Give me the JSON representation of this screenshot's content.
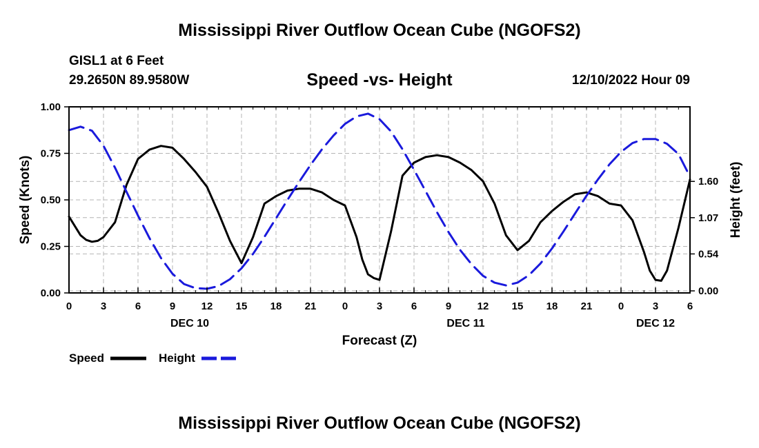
{
  "header": {
    "title": "Mississippi River Outflow Ocean Cube (NGOFS2)",
    "station_name": "GISL1 at 6 Feet",
    "station_coords": "29.2650N  89.9580W",
    "datetime": "12/10/2022 Hour 09"
  },
  "footer": {
    "title": "Mississippi River Outflow Ocean Cube (NGOFS2)"
  },
  "colors": {
    "speed": "#000000",
    "height": "#1a1adc",
    "grid": "#b4b4b4"
  },
  "chart_data": {
    "type": "line",
    "title": "Speed -vs- Height",
    "xlabel": "Forecast (Z)",
    "ylabel": "Speed (Knots)",
    "y2label": "Height (feet)",
    "xlim": [
      0,
      54
    ],
    "ylim": [
      0,
      1
    ],
    "y2lim": [
      -0.03,
      2.69
    ],
    "x_ticks": [
      0,
      3,
      6,
      9,
      12,
      15,
      18,
      21,
      24,
      27,
      30,
      33,
      36,
      39,
      42,
      45,
      48,
      51,
      54
    ],
    "x_tick_labels": [
      "0",
      "3",
      "6",
      "9",
      "12",
      "15",
      "18",
      "21",
      "0",
      "3",
      "6",
      "9",
      "12",
      "15",
      "18",
      "21",
      "0",
      "3",
      "6"
    ],
    "day_labels": [
      {
        "x": 10.5,
        "label": "DEC 10"
      },
      {
        "x": 34.5,
        "label": "DEC 11"
      },
      {
        "x": 51,
        "label": "DEC 12"
      }
    ],
    "y_ticks": [
      0.0,
      0.25,
      0.5,
      0.75,
      1.0
    ],
    "y_tick_labels": [
      "0.00",
      "0.25",
      "0.50",
      "0.75",
      "1.00"
    ],
    "y2_ticks": [
      0.0,
      0.54,
      1.07,
      1.6
    ],
    "y2_tick_labels": [
      "0.00",
      "0.54",
      "1.07",
      "1.60"
    ],
    "grid": true,
    "legend_position": "bottom-left",
    "series": [
      {
        "name": "Speed",
        "axis": "left",
        "style": "solid",
        "x": [
          0,
          1,
          1.5,
          2,
          2.5,
          3,
          4,
          5,
          6,
          7,
          8,
          9,
          10,
          11,
          12,
          13,
          14,
          15,
          16,
          17,
          18,
          19,
          20,
          21,
          22,
          23,
          24,
          25,
          25.5,
          26,
          26.5,
          27,
          28,
          29,
          30,
          31,
          32,
          33,
          34,
          35,
          36,
          37,
          38,
          39,
          40,
          41,
          42,
          43,
          44,
          45,
          46,
          47,
          48,
          49,
          50,
          50.5,
          51,
          51.5,
          52,
          53,
          54
        ],
        "y": [
          0.41,
          0.31,
          0.285,
          0.275,
          0.28,
          0.3,
          0.38,
          0.58,
          0.72,
          0.77,
          0.79,
          0.78,
          0.72,
          0.65,
          0.57,
          0.43,
          0.28,
          0.16,
          0.3,
          0.48,
          0.52,
          0.55,
          0.56,
          0.56,
          0.54,
          0.5,
          0.47,
          0.3,
          0.18,
          0.1,
          0.08,
          0.07,
          0.33,
          0.63,
          0.7,
          0.73,
          0.74,
          0.73,
          0.7,
          0.66,
          0.6,
          0.48,
          0.31,
          0.23,
          0.28,
          0.38,
          0.44,
          0.49,
          0.53,
          0.54,
          0.52,
          0.48,
          0.47,
          0.39,
          0.22,
          0.12,
          0.07,
          0.065,
          0.12,
          0.35,
          0.61
        ]
      },
      {
        "name": "Height",
        "axis": "right",
        "style": "dashed",
        "x": [
          0,
          1,
          2,
          3,
          4,
          5,
          6,
          7,
          8,
          9,
          10,
          11,
          12,
          13,
          14,
          15,
          16,
          17,
          18,
          19,
          20,
          21,
          22,
          23,
          24,
          25,
          26,
          27,
          28,
          29,
          30,
          31,
          32,
          33,
          34,
          35,
          36,
          37,
          38,
          39,
          40,
          41,
          42,
          43,
          44,
          45,
          46,
          47,
          48,
          49,
          50,
          51,
          52,
          53,
          54
        ],
        "y": [
          2.35,
          2.4,
          2.34,
          2.12,
          1.8,
          1.45,
          1.1,
          0.77,
          0.48,
          0.25,
          0.1,
          0.04,
          0.03,
          0.07,
          0.17,
          0.33,
          0.54,
          0.79,
          1.06,
          1.33,
          1.59,
          1.84,
          2.07,
          2.27,
          2.44,
          2.55,
          2.59,
          2.51,
          2.33,
          2.07,
          1.77,
          1.46,
          1.15,
          0.86,
          0.6,
          0.39,
          0.22,
          0.12,
          0.08,
          0.12,
          0.23,
          0.4,
          0.62,
          0.87,
          1.13,
          1.39,
          1.63,
          1.85,
          2.03,
          2.16,
          2.22,
          2.22,
          2.15,
          2.0,
          1.67
        ]
      }
    ]
  }
}
